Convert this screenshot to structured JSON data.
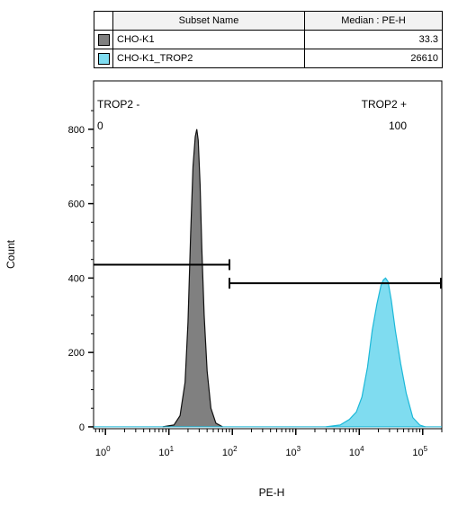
{
  "legend": {
    "headers": [
      "Subset Name",
      "Median : PE-H"
    ],
    "rows": [
      {
        "name": "CHO-K1",
        "median": "33.3",
        "color": "#808080"
      },
      {
        "name": "CHO-K1_TROP2",
        "median": "26610",
        "color": "#7fdcf0"
      }
    ]
  },
  "chart_data": {
    "type": "area",
    "xlabel": "PE-H",
    "ylabel": "Count",
    "x_scale": "log",
    "xlim": [
      0.65,
      200000
    ],
    "ylim": [
      -5,
      930
    ],
    "y_ticks": [
      0,
      200,
      400,
      600,
      800
    ],
    "x_tick_bases": [
      "10",
      "10",
      "10",
      "10",
      "10",
      "10"
    ],
    "x_tick_exponents": [
      "0",
      "1",
      "2",
      "3",
      "4",
      "5"
    ],
    "grid": false,
    "series": [
      {
        "name": "CHO-K1",
        "fill": "#808080",
        "stroke": "#111111",
        "x": [
          8,
          12,
          15,
          18,
          20,
          22,
          24,
          26,
          27.5,
          29,
          31,
          33,
          36,
          40,
          46,
          55,
          70
        ],
        "y": [
          0,
          5,
          30,
          120,
          280,
          520,
          700,
          780,
          800,
          770,
          650,
          480,
          300,
          150,
          50,
          10,
          0
        ]
      },
      {
        "name": "CHO-K1_TROP2",
        "fill": "#7fdcf0",
        "stroke": "#1cb8d8",
        "x": [
          3000,
          5000,
          7000,
          9000,
          11000,
          13500,
          16000,
          19000,
          22000,
          24000,
          26000,
          28500,
          32000,
          37000,
          45000,
          55000,
          70000,
          90000,
          110000
        ],
        "y": [
          0,
          5,
          20,
          40,
          80,
          160,
          260,
          330,
          380,
          395,
          400,
          390,
          340,
          260,
          170,
          90,
          25,
          5,
          0
        ]
      }
    ],
    "gates": [
      {
        "label": "TROP2 -",
        "value": "0",
        "x_start": 0.65,
        "x_end": 90,
        "y": 436
      },
      {
        "label": "TROP2 +",
        "value": "100",
        "x_start": 90,
        "x_end": 200000,
        "y": 386
      }
    ]
  }
}
